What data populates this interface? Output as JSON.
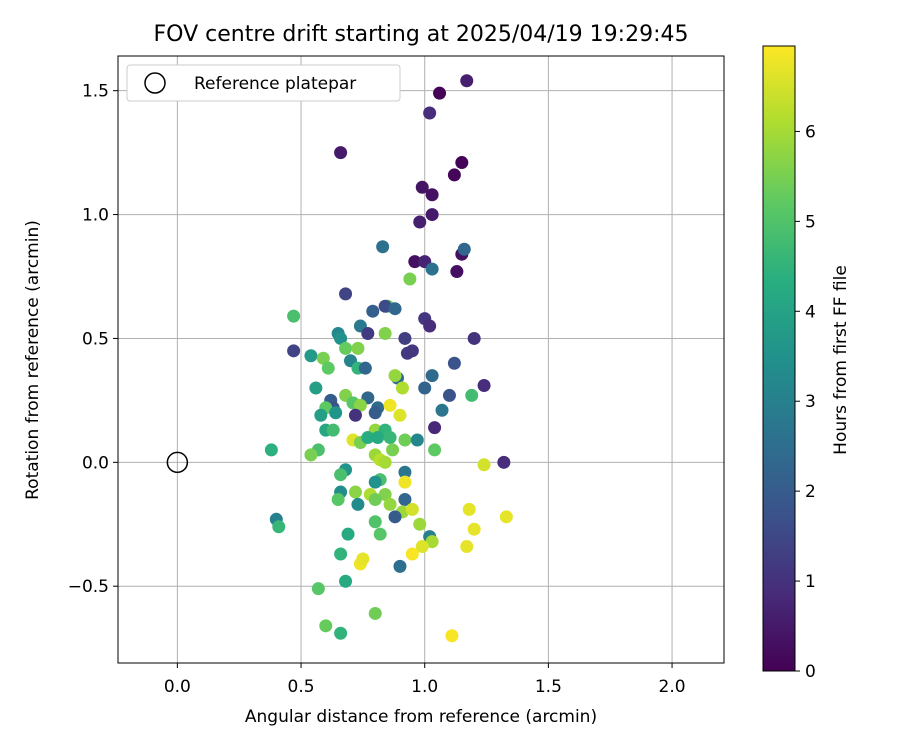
{
  "chart_data": {
    "type": "scatter",
    "title": "FOV centre drift starting at 2025/04/19 19:29:45",
    "xlabel": "Angular distance from reference (arcmin)",
    "ylabel": "Rotation from reference (arcmin)",
    "colorbar_label": "Hours from first FF file",
    "xlim": [
      -0.24,
      2.21
    ],
    "ylim": [
      -0.81,
      1.64
    ],
    "clim": [
      0,
      6.95
    ],
    "xticks": [
      0.0,
      0.5,
      1.0,
      1.5,
      2.0
    ],
    "xtick_labels": [
      "0.0",
      "0.5",
      "1.0",
      "1.5",
      "2.0"
    ],
    "yticks": [
      -0.5,
      0.0,
      0.5,
      1.0,
      1.5
    ],
    "ytick_labels": [
      "−0.5",
      "0.0",
      "0.5",
      "1.0",
      "1.5"
    ],
    "cticks": [
      0,
      1,
      2,
      3,
      4,
      5,
      6
    ],
    "ctick_labels": [
      "0",
      "1",
      "2",
      "3",
      "4",
      "5",
      "6"
    ],
    "grid": true,
    "colormap": "viridis",
    "legend": {
      "position": "top-left",
      "entries": [
        "Reference platepar"
      ]
    },
    "reference_point": {
      "x": 0.0,
      "y": 0.0
    },
    "points": [
      {
        "x": 1.06,
        "y": 1.49,
        "c": 0.05
      },
      {
        "x": 1.17,
        "y": 1.54,
        "c": 0.6
      },
      {
        "x": 1.02,
        "y": 1.41,
        "c": 0.9
      },
      {
        "x": 0.66,
        "y": 1.25,
        "c": 0.5
      },
      {
        "x": 1.15,
        "y": 1.21,
        "c": 0.05
      },
      {
        "x": 1.12,
        "y": 1.16,
        "c": 0.1
      },
      {
        "x": 0.99,
        "y": 1.11,
        "c": 0.4
      },
      {
        "x": 1.03,
        "y": 1.08,
        "c": 0.3
      },
      {
        "x": 1.03,
        "y": 1.0,
        "c": 0.5
      },
      {
        "x": 0.98,
        "y": 0.97,
        "c": 0.6
      },
      {
        "x": 1.15,
        "y": 0.84,
        "c": 0.3
      },
      {
        "x": 1.16,
        "y": 0.86,
        "c": 2.3
      },
      {
        "x": 0.83,
        "y": 0.87,
        "c": 2.6
      },
      {
        "x": 0.96,
        "y": 0.81,
        "c": 0.3
      },
      {
        "x": 1.0,
        "y": 0.81,
        "c": 0.7
      },
      {
        "x": 1.03,
        "y": 0.78,
        "c": 2.6
      },
      {
        "x": 1.13,
        "y": 0.77,
        "c": 0.3
      },
      {
        "x": 0.94,
        "y": 0.74,
        "c": 5.5
      },
      {
        "x": 0.68,
        "y": 0.68,
        "c": 1.4
      },
      {
        "x": 0.85,
        "y": 0.63,
        "c": 5.2
      },
      {
        "x": 0.84,
        "y": 0.63,
        "c": 1.6
      },
      {
        "x": 0.79,
        "y": 0.61,
        "c": 2.1
      },
      {
        "x": 0.88,
        "y": 0.62,
        "c": 2.3
      },
      {
        "x": 0.47,
        "y": 0.59,
        "c": 4.9
      },
      {
        "x": 1.0,
        "y": 0.58,
        "c": 1.1
      },
      {
        "x": 1.02,
        "y": 0.55,
        "c": 0.9
      },
      {
        "x": 0.74,
        "y": 0.55,
        "c": 2.8
      },
      {
        "x": 0.77,
        "y": 0.52,
        "c": 1.2
      },
      {
        "x": 0.65,
        "y": 0.52,
        "c": 3.2
      },
      {
        "x": 0.84,
        "y": 0.52,
        "c": 5.6
      },
      {
        "x": 0.66,
        "y": 0.5,
        "c": 3.5
      },
      {
        "x": 0.92,
        "y": 0.5,
        "c": 1.3
      },
      {
        "x": 1.2,
        "y": 0.5,
        "c": 1.0
      },
      {
        "x": 0.47,
        "y": 0.45,
        "c": 1.4
      },
      {
        "x": 0.68,
        "y": 0.46,
        "c": 5.3
      },
      {
        "x": 0.73,
        "y": 0.46,
        "c": 5.6
      },
      {
        "x": 0.93,
        "y": 0.44,
        "c": 1.2
      },
      {
        "x": 0.95,
        "y": 0.45,
        "c": 1.1
      },
      {
        "x": 0.54,
        "y": 0.43,
        "c": 3.7
      },
      {
        "x": 0.59,
        "y": 0.42,
        "c": 5.5
      },
      {
        "x": 0.7,
        "y": 0.41,
        "c": 3.1
      },
      {
        "x": 1.12,
        "y": 0.4,
        "c": 1.8
      },
      {
        "x": 0.61,
        "y": 0.38,
        "c": 5.2
      },
      {
        "x": 0.73,
        "y": 0.38,
        "c": 4.5
      },
      {
        "x": 0.76,
        "y": 0.38,
        "c": 2.3
      },
      {
        "x": 0.89,
        "y": 0.34,
        "c": 2.4
      },
      {
        "x": 0.88,
        "y": 0.35,
        "c": 5.8
      },
      {
        "x": 1.03,
        "y": 0.35,
        "c": 2.4
      },
      {
        "x": 0.91,
        "y": 0.3,
        "c": 6.1
      },
      {
        "x": 1.0,
        "y": 0.3,
        "c": 2.2
      },
      {
        "x": 0.56,
        "y": 0.3,
        "c": 3.9
      },
      {
        "x": 1.24,
        "y": 0.31,
        "c": 0.9
      },
      {
        "x": 0.68,
        "y": 0.27,
        "c": 5.6
      },
      {
        "x": 0.77,
        "y": 0.26,
        "c": 2.3
      },
      {
        "x": 1.1,
        "y": 0.27,
        "c": 1.8
      },
      {
        "x": 1.19,
        "y": 0.27,
        "c": 4.8
      },
      {
        "x": 0.62,
        "y": 0.25,
        "c": 2.0
      },
      {
        "x": 0.71,
        "y": 0.24,
        "c": 5.1
      },
      {
        "x": 0.63,
        "y": 0.22,
        "c": 1.8
      },
      {
        "x": 0.74,
        "y": 0.23,
        "c": 5.7
      },
      {
        "x": 0.6,
        "y": 0.22,
        "c": 5.2
      },
      {
        "x": 0.81,
        "y": 0.22,
        "c": 2.4
      },
      {
        "x": 0.86,
        "y": 0.23,
        "c": 6.8
      },
      {
        "x": 0.64,
        "y": 0.2,
        "c": 3.6
      },
      {
        "x": 1.07,
        "y": 0.21,
        "c": 2.7
      },
      {
        "x": 0.58,
        "y": 0.19,
        "c": 3.9
      },
      {
        "x": 0.72,
        "y": 0.19,
        "c": 1.0
      },
      {
        "x": 0.8,
        "y": 0.2,
        "c": 2.0
      },
      {
        "x": 0.9,
        "y": 0.19,
        "c": 6.6
      },
      {
        "x": 0.6,
        "y": 0.13,
        "c": 4.1
      },
      {
        "x": 0.63,
        "y": 0.13,
        "c": 4.8
      },
      {
        "x": 0.8,
        "y": 0.13,
        "c": 5.8
      },
      {
        "x": 0.84,
        "y": 0.13,
        "c": 4.5
      },
      {
        "x": 1.04,
        "y": 0.14,
        "c": 0.8
      },
      {
        "x": 0.71,
        "y": 0.09,
        "c": 6.6
      },
      {
        "x": 0.74,
        "y": 0.08,
        "c": 5.5
      },
      {
        "x": 0.77,
        "y": 0.1,
        "c": 4.3
      },
      {
        "x": 0.81,
        "y": 0.1,
        "c": 4.2
      },
      {
        "x": 0.86,
        "y": 0.1,
        "c": 4.6
      },
      {
        "x": 0.92,
        "y": 0.09,
        "c": 5.4
      },
      {
        "x": 0.97,
        "y": 0.09,
        "c": 3.2
      },
      {
        "x": 0.38,
        "y": 0.05,
        "c": 4.4
      },
      {
        "x": 0.57,
        "y": 0.05,
        "c": 4.9
      },
      {
        "x": 0.87,
        "y": 0.05,
        "c": 5.5
      },
      {
        "x": 1.04,
        "y": 0.05,
        "c": 5.2
      },
      {
        "x": 0.54,
        "y": 0.03,
        "c": 5.5
      },
      {
        "x": 0.8,
        "y": 0.03,
        "c": 5.9
      },
      {
        "x": 0.82,
        "y": 0.01,
        "c": 6.2
      },
      {
        "x": 0.84,
        "y": 0.0,
        "c": 6.0
      },
      {
        "x": 1.24,
        "y": -0.01,
        "c": 6.5
      },
      {
        "x": 1.32,
        "y": 0.0,
        "c": 0.9
      },
      {
        "x": 0.68,
        "y": -0.03,
        "c": 3.6
      },
      {
        "x": 0.66,
        "y": -0.05,
        "c": 4.9
      },
      {
        "x": 0.92,
        "y": -0.04,
        "c": 2.7
      },
      {
        "x": 0.82,
        "y": -0.07,
        "c": 4.9
      },
      {
        "x": 0.8,
        "y": -0.08,
        "c": 3.5
      },
      {
        "x": 0.92,
        "y": -0.08,
        "c": 6.8
      },
      {
        "x": 0.66,
        "y": -0.12,
        "c": 3.4
      },
      {
        "x": 0.72,
        "y": -0.12,
        "c": 5.7
      },
      {
        "x": 0.78,
        "y": -0.13,
        "c": 6.1
      },
      {
        "x": 0.84,
        "y": -0.13,
        "c": 5.6
      },
      {
        "x": 0.65,
        "y": -0.15,
        "c": 5.1
      },
      {
        "x": 0.8,
        "y": -0.15,
        "c": 5.4
      },
      {
        "x": 0.92,
        "y": -0.15,
        "c": 2.3
      },
      {
        "x": 0.73,
        "y": -0.17,
        "c": 3.3
      },
      {
        "x": 0.86,
        "y": -0.17,
        "c": 5.8
      },
      {
        "x": 0.91,
        "y": -0.2,
        "c": 5.9
      },
      {
        "x": 0.95,
        "y": -0.19,
        "c": 6.5
      },
      {
        "x": 1.18,
        "y": -0.19,
        "c": 6.7
      },
      {
        "x": 0.88,
        "y": -0.22,
        "c": 2.0
      },
      {
        "x": 1.33,
        "y": -0.22,
        "c": 6.7
      },
      {
        "x": 0.4,
        "y": -0.23,
        "c": 3.0
      },
      {
        "x": 0.41,
        "y": -0.26,
        "c": 4.6
      },
      {
        "x": 0.8,
        "y": -0.24,
        "c": 5.0
      },
      {
        "x": 0.98,
        "y": -0.25,
        "c": 5.9
      },
      {
        "x": 1.2,
        "y": -0.27,
        "c": 6.7
      },
      {
        "x": 0.69,
        "y": -0.29,
        "c": 4.2
      },
      {
        "x": 0.82,
        "y": -0.29,
        "c": 5.1
      },
      {
        "x": 1.02,
        "y": -0.3,
        "c": 3.0
      },
      {
        "x": 1.03,
        "y": -0.32,
        "c": 6.0
      },
      {
        "x": 0.99,
        "y": -0.34,
        "c": 6.6
      },
      {
        "x": 1.17,
        "y": -0.34,
        "c": 6.7
      },
      {
        "x": 0.66,
        "y": -0.37,
        "c": 4.5
      },
      {
        "x": 0.95,
        "y": -0.37,
        "c": 6.9
      },
      {
        "x": 0.74,
        "y": -0.41,
        "c": 6.8
      },
      {
        "x": 0.75,
        "y": -0.39,
        "c": 6.7
      },
      {
        "x": 0.9,
        "y": -0.42,
        "c": 2.5
      },
      {
        "x": 0.68,
        "y": -0.48,
        "c": 4.2
      },
      {
        "x": 0.57,
        "y": -0.51,
        "c": 5.1
      },
      {
        "x": 0.8,
        "y": -0.61,
        "c": 5.4
      },
      {
        "x": 0.6,
        "y": -0.66,
        "c": 5.3
      },
      {
        "x": 0.66,
        "y": -0.69,
        "c": 4.5
      },
      {
        "x": 1.11,
        "y": -0.7,
        "c": 6.9
      }
    ]
  }
}
